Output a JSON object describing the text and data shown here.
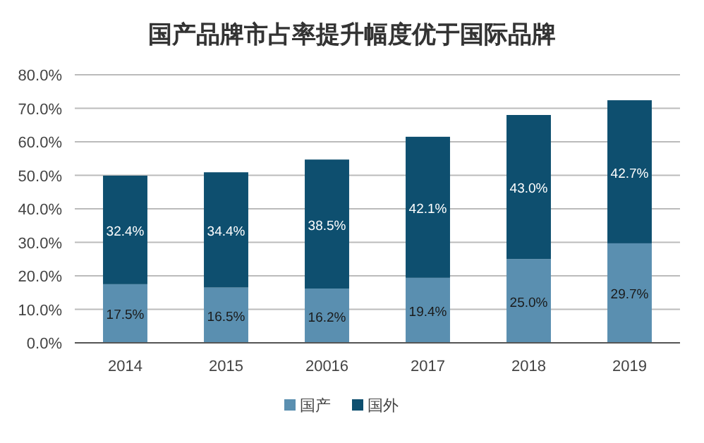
{
  "chart_data": {
    "type": "bar",
    "stacked": true,
    "title": "国产品牌市占率提升幅度优于国际品牌",
    "categories": [
      "2014",
      "2015",
      "20016",
      "2017",
      "2018",
      "2019"
    ],
    "series": [
      {
        "name": "国产",
        "color": "#5a8fb0",
        "values": [
          17.5,
          16.5,
          16.2,
          19.4,
          25.0,
          29.7
        ],
        "value_labels": [
          "17.5%",
          "16.5%",
          "16.2%",
          "19.4%",
          "25.0%",
          "29.7%"
        ]
      },
      {
        "name": "国外",
        "color": "#0e4f6f",
        "values": [
          32.4,
          34.4,
          38.5,
          42.1,
          43.0,
          42.7
        ],
        "value_labels": [
          "32.4%",
          "34.4%",
          "38.5%",
          "42.1%",
          "43.0%",
          "42.7%"
        ]
      }
    ],
    "ylim": [
      0,
      80
    ],
    "yticks": [
      {
        "value": 0,
        "label": "0.0%"
      },
      {
        "value": 10,
        "label": "10.0%"
      },
      {
        "value": 20,
        "label": "20.0%"
      },
      {
        "value": 30,
        "label": "30.0%"
      },
      {
        "value": 40,
        "label": "40.0%"
      },
      {
        "value": 50,
        "label": "50.0%"
      },
      {
        "value": 60,
        "label": "60.0%"
      },
      {
        "value": 70,
        "label": "70.0%"
      },
      {
        "value": 80,
        "label": "80.0%"
      }
    ],
    "grid": "y",
    "legend": "bottom"
  }
}
